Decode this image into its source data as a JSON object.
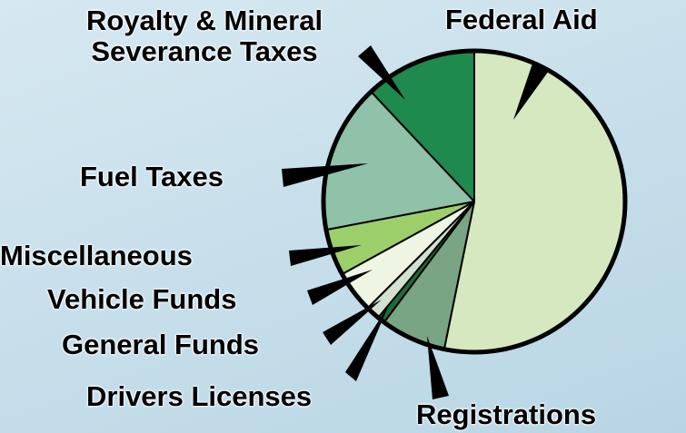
{
  "chart_data": {
    "type": "pie",
    "categories": [
      "Federal Aid",
      "Registrations",
      "Drivers Licenses",
      "General Funds",
      "Vehicle Funds",
      "Miscellaneous",
      "Fuel Taxes",
      "Royalty & Mineral Severance Taxes"
    ],
    "values": [
      53.2,
      7,
      0.8,
      1.5,
      4.5,
      5,
      16,
      12
    ],
    "colors": [
      "#d5e8bf",
      "#79a584",
      "#1f6b3a",
      "#d3e2cf",
      "#eef5e2",
      "#9ccf6a",
      "#8fc2a8",
      "#1e8a4e"
    ]
  }
}
